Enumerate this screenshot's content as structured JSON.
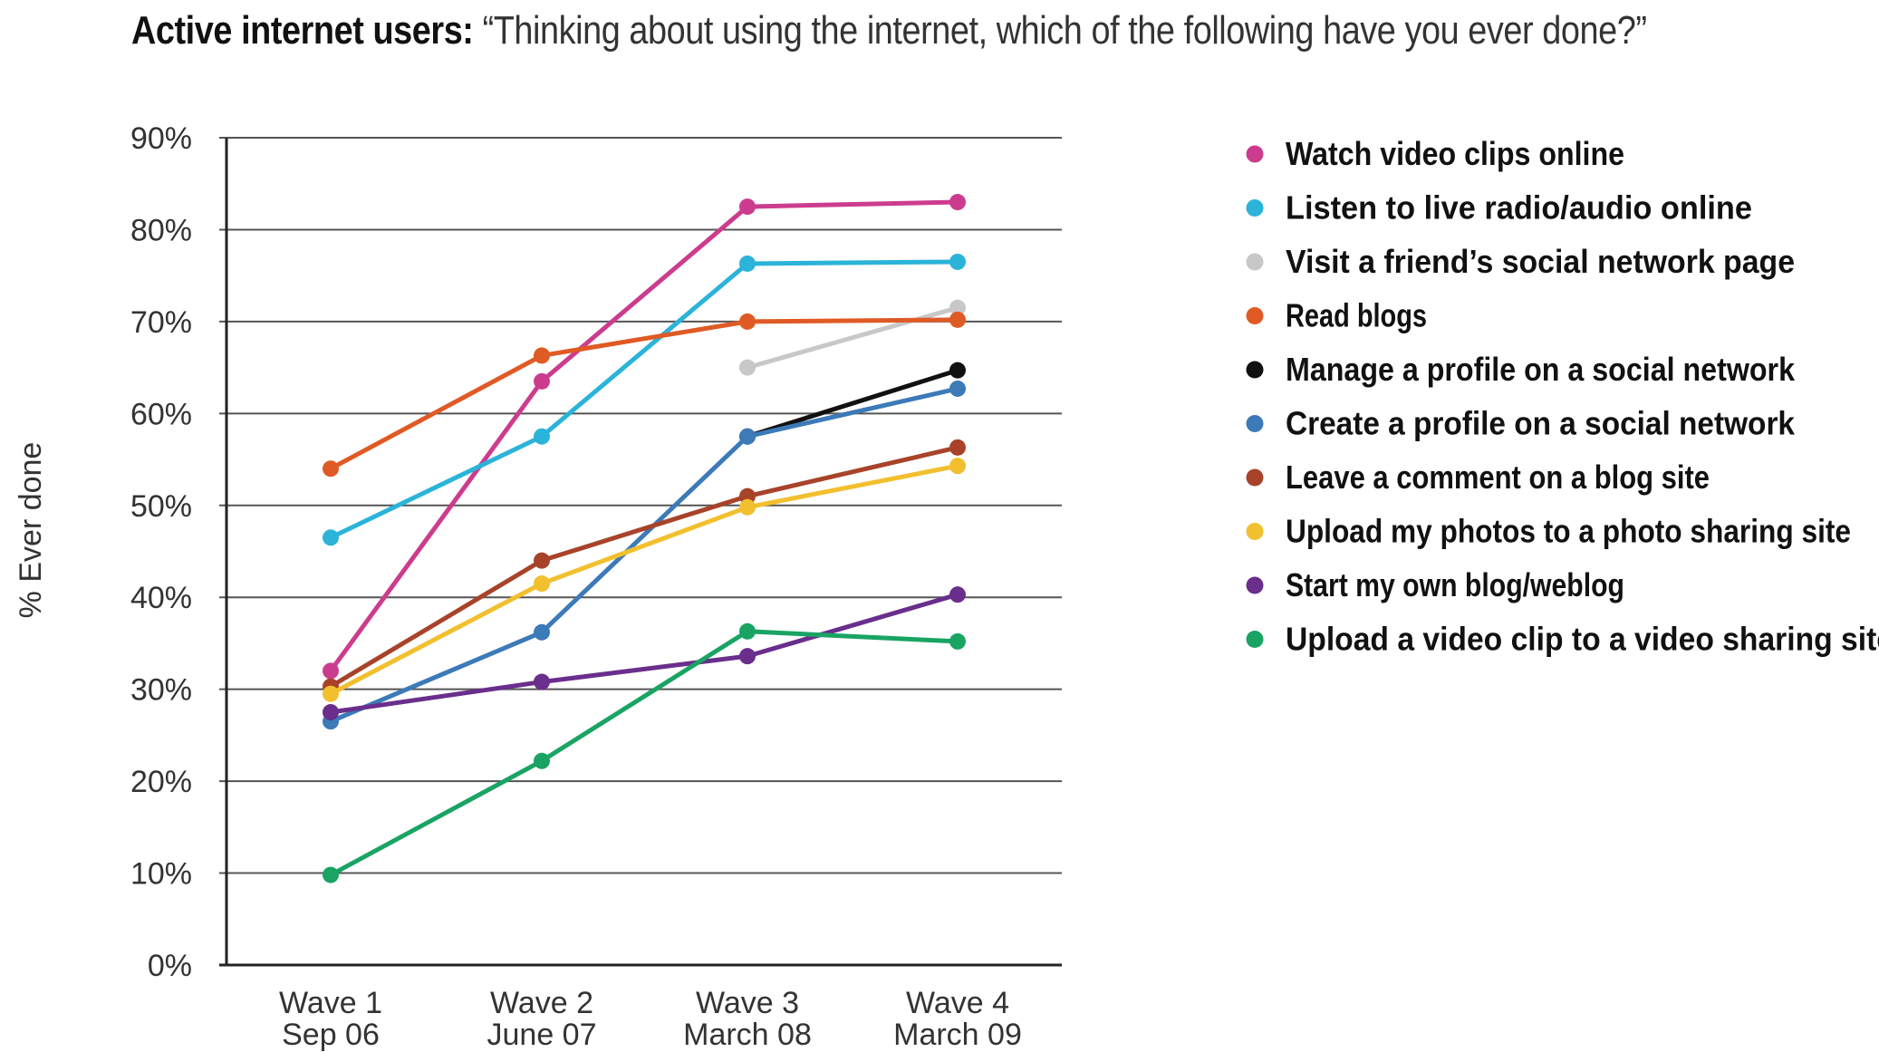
{
  "chart_data": {
    "type": "line",
    "title_bold": "Active internet users:",
    "title_rest": "“Thinking about using the internet, which of the following have you ever done?”",
    "ylabel": "% Ever done",
    "xlabel": "",
    "ylim": [
      0,
      90
    ],
    "yticks": [
      "0%",
      "10%",
      "20%",
      "30%",
      "40%",
      "50%",
      "60%",
      "70%",
      "80%",
      "90%"
    ],
    "categories": [
      {
        "line1": "Wave 1",
        "line2": "Sep 06"
      },
      {
        "line1": "Wave 2",
        "line2": "June 07"
      },
      {
        "line1": "Wave 3",
        "line2": "March 08"
      },
      {
        "line1": "Wave 4",
        "line2": "March 09"
      }
    ],
    "grid": true,
    "legend_position": "right",
    "series": [
      {
        "name": "Watch video clips online",
        "color": "#cc3c8e",
        "values": [
          32,
          63.5,
          82.5,
          83
        ]
      },
      {
        "name": "Listen to live radio/audio online",
        "color": "#2bb3d9",
        "values": [
          46.5,
          57.5,
          76.3,
          76.5
        ]
      },
      {
        "name": "Visit a friend’s social network page",
        "color": "#c8c8c8",
        "values": [
          null,
          null,
          65,
          71.5
        ]
      },
      {
        "name": "Read blogs",
        "color": "#e05a25",
        "values": [
          54,
          66.3,
          70,
          70.2
        ]
      },
      {
        "name": "Manage a profile on a social network",
        "color": "#111111",
        "values": [
          null,
          null,
          57.5,
          64.7
        ]
      },
      {
        "name": "Create a profile on a social network",
        "color": "#3c7ab8",
        "values": [
          26.5,
          36.2,
          57.5,
          62.7
        ]
      },
      {
        "name": "Leave a comment on a blog site",
        "color": "#a8432a",
        "values": [
          30.3,
          44,
          51,
          56.3
        ]
      },
      {
        "name": "Upload my photos to a photo sharing site",
        "color": "#f2c02e",
        "values": [
          29.5,
          41.5,
          49.8,
          54.3
        ]
      },
      {
        "name": "Start my own blog/weblog",
        "color": "#6a2e8c",
        "values": [
          27.5,
          30.8,
          33.6,
          40.3
        ]
      },
      {
        "name": "Upload a video clip to a video sharing site",
        "color": "#19a463",
        "values": [
          9.8,
          22.2,
          36.3,
          35.2
        ]
      }
    ]
  }
}
